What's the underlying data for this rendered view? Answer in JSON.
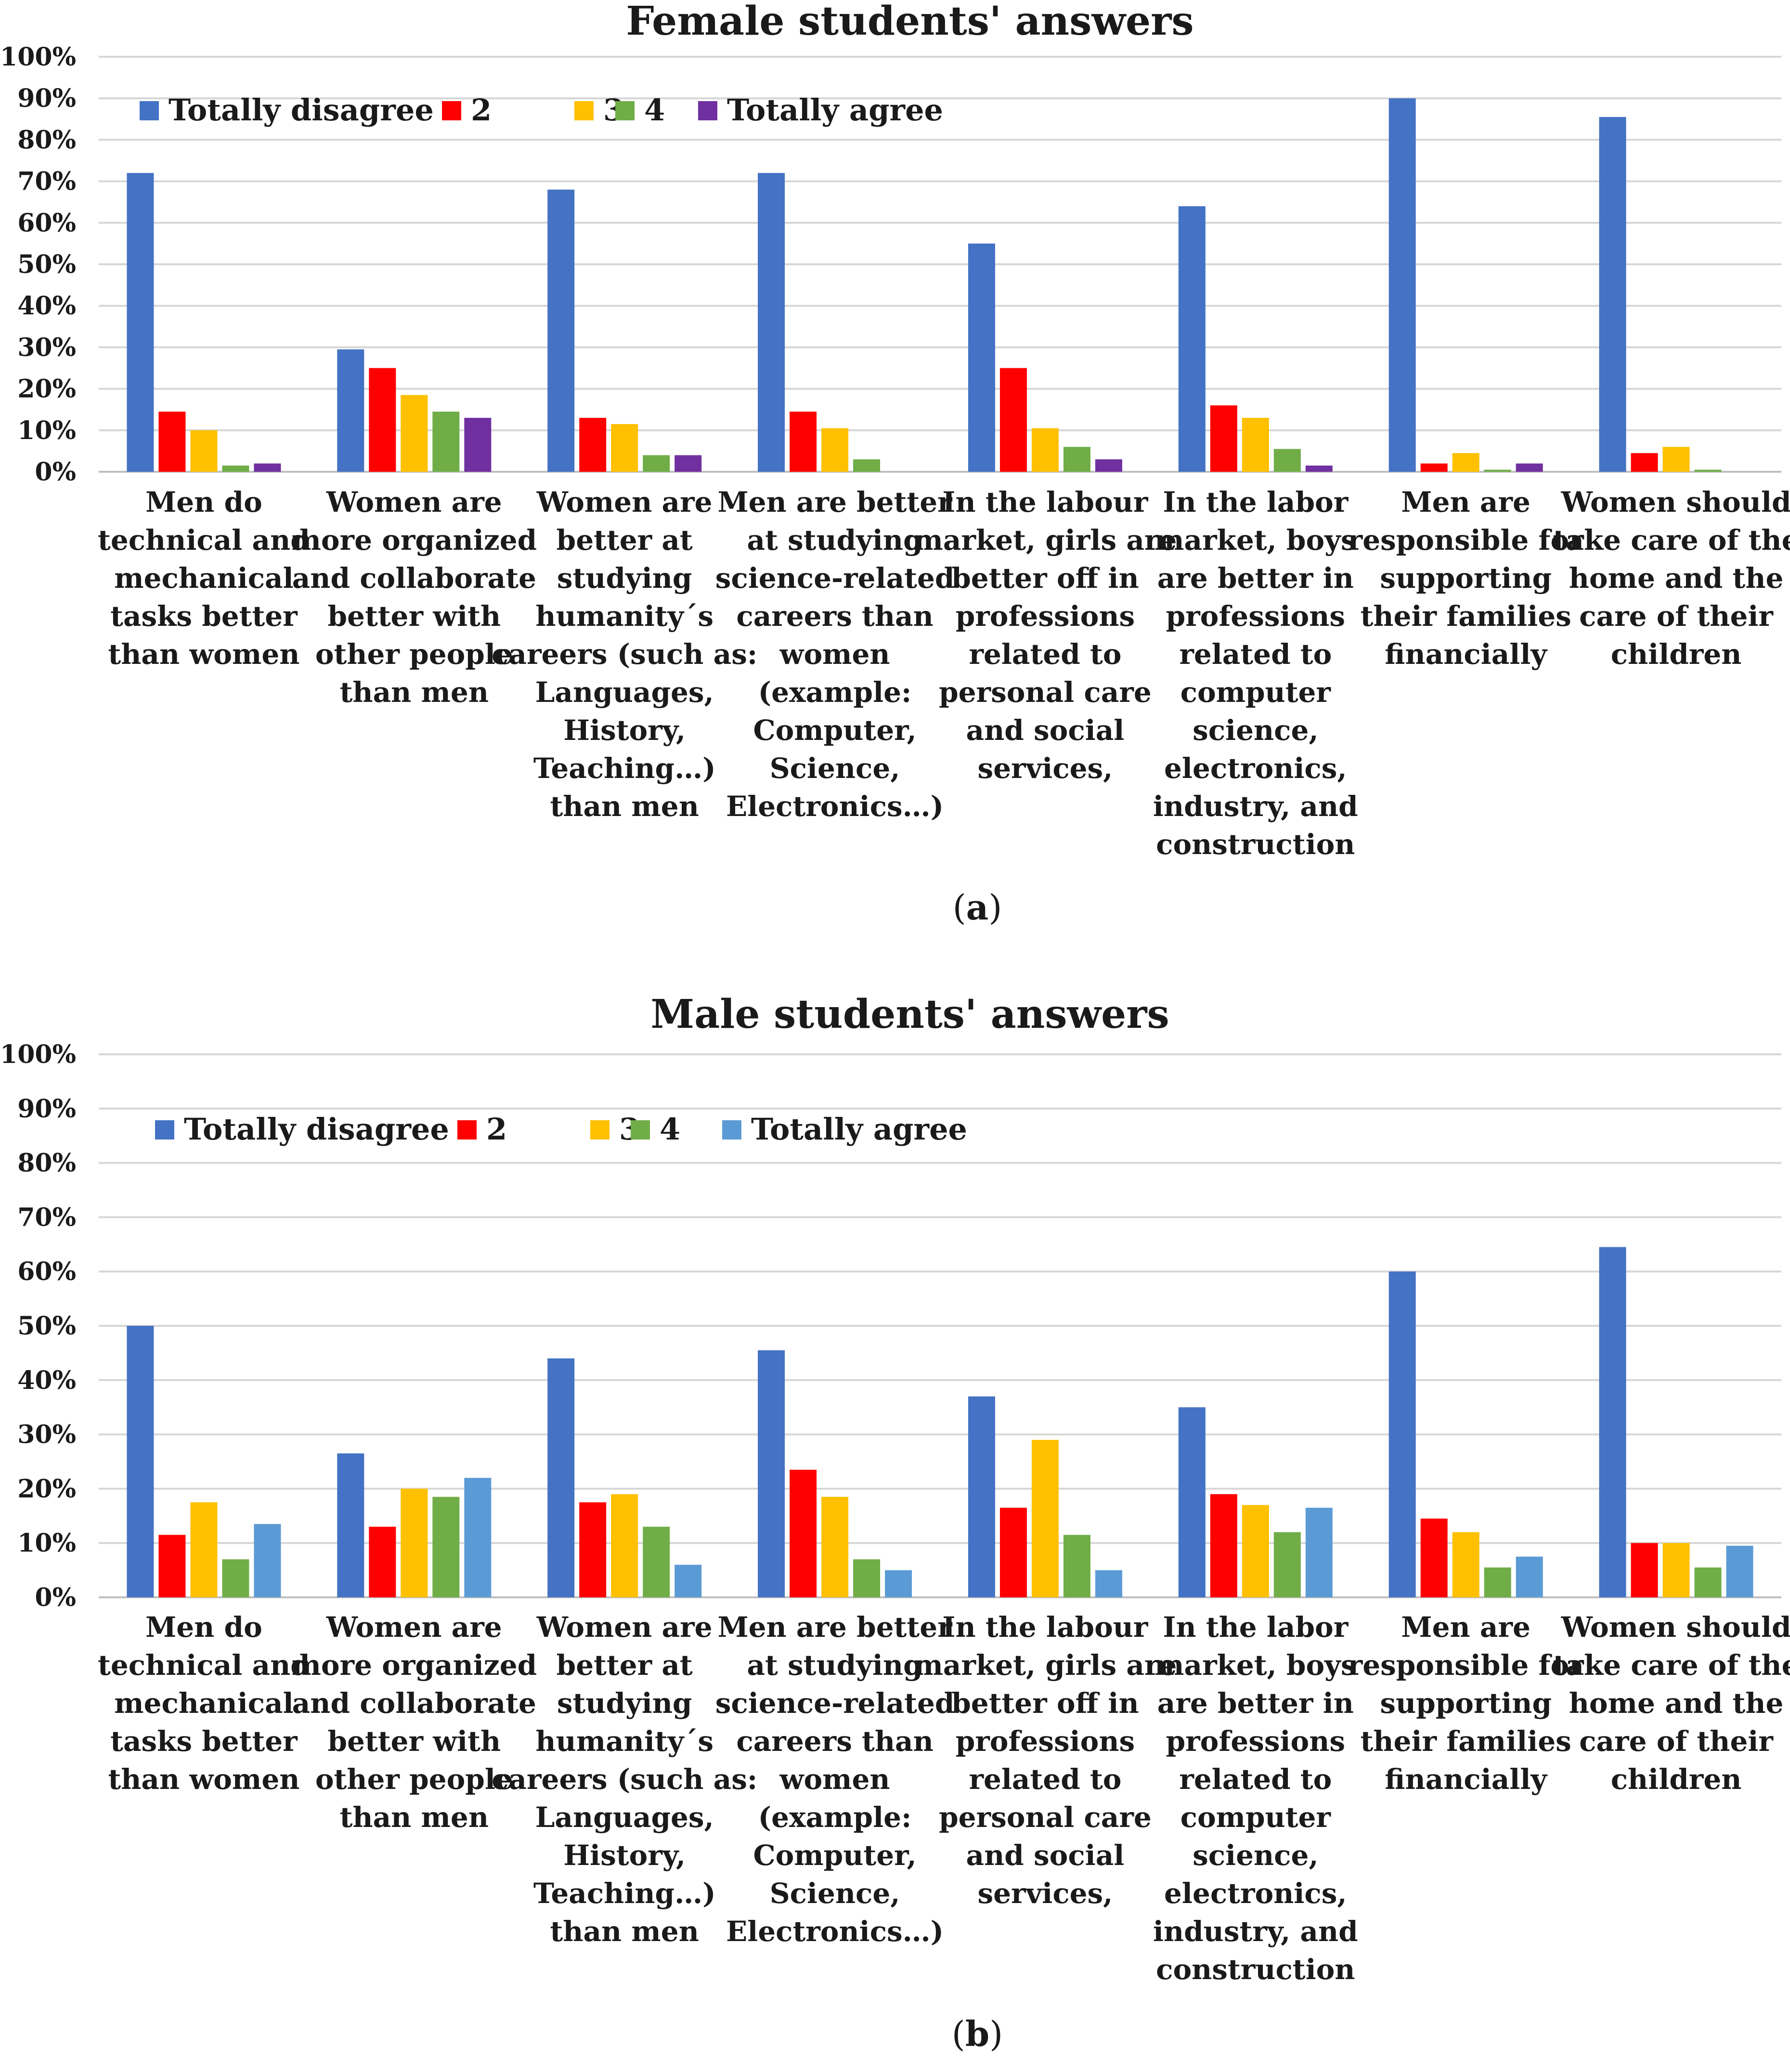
{
  "chart_data": [
    {
      "type": "bar",
      "panel_label": "a",
      "title": "Female students' answers",
      "ylim": [
        0,
        100
      ],
      "yticks": [
        "0%",
        "10%",
        "20%",
        "30%",
        "40%",
        "50%",
        "60%",
        "70%",
        "80%",
        "90%",
        "100%"
      ],
      "legend_position": "top-left",
      "categories": [
        [
          "Men do",
          "technical and",
          "mechanical",
          "tasks better",
          "than women"
        ],
        [
          "Women are",
          "more organized",
          "and collaborate",
          "better with",
          "other people",
          "than men"
        ],
        [
          "Women are",
          "better at",
          "studying",
          "humanity´s",
          "careers (such as:",
          "Languages,",
          "History,",
          "Teaching…)",
          "than men"
        ],
        [
          "Men are better",
          "at studying",
          "science-related",
          "careers than",
          "women",
          "(example:",
          "Computer,",
          "Science,",
          "Electronics…)"
        ],
        [
          "In the labour",
          "market, girls are",
          "better off in",
          "professions",
          "related to",
          "personal care",
          "and social",
          "services,"
        ],
        [
          "In the labor",
          "market, boys",
          "are better in",
          "professions",
          "related to",
          "computer",
          "science,",
          "electronics,",
          "industry, and",
          "construction"
        ],
        [
          "Men are",
          "responsible for",
          "supporting",
          "their families",
          "financially"
        ],
        [
          "Women should",
          "take care of the",
          "home and the",
          "care of their",
          "children"
        ]
      ],
      "series": [
        {
          "name": "Totally disagree",
          "color": "#4472C4",
          "values": [
            72,
            29.5,
            68,
            72,
            55,
            64,
            90,
            85.5
          ]
        },
        {
          "name": "2",
          "color": "#FF0000",
          "values": [
            14.5,
            25,
            13,
            14.5,
            25,
            16,
            2,
            4.5
          ]
        },
        {
          "name": "3",
          "color": "#FFC000",
          "values": [
            10,
            18.5,
            11.5,
            10.5,
            10.5,
            13,
            4.5,
            6
          ]
        },
        {
          "name": "4",
          "color": "#70AD47",
          "values": [
            1.5,
            14.5,
            4,
            3,
            6,
            5.5,
            0.5,
            0.5
          ]
        },
        {
          "name": "Totally agree",
          "color": "#7030A0",
          "values": [
            2,
            13,
            4,
            0,
            3,
            1.5,
            2,
            0
          ]
        }
      ]
    },
    {
      "type": "bar",
      "panel_label": "b",
      "title": "Male students' answers",
      "ylim": [
        0,
        100
      ],
      "yticks": [
        "0%",
        "10%",
        "20%",
        "30%",
        "40%",
        "50%",
        "60%",
        "70%",
        "80%",
        "90%",
        "100%"
      ],
      "legend_position": "top-left",
      "categories": [
        [
          "Men do",
          "technical and",
          "mechanical",
          "tasks better",
          "than women"
        ],
        [
          "Women are",
          "more organized",
          "and collaborate",
          "better with",
          "other people",
          "than men"
        ],
        [
          "Women are",
          "better at",
          "studying",
          "humanity´s",
          "careers (such as:",
          "Languages,",
          "History,",
          "Teaching…)",
          "than men"
        ],
        [
          "Men are better",
          "at studying",
          "science-related",
          "careers than",
          "women",
          "(example:",
          "Computer,",
          "Science,",
          "Electronics…)"
        ],
        [
          "In the labour",
          "market, girls are",
          "better off in",
          "professions",
          "related to",
          "personal care",
          "and social",
          "services,"
        ],
        [
          "In the labor",
          "market, boys",
          "are better in",
          "professions",
          "related to",
          "computer",
          "science,",
          "electronics,",
          "industry, and",
          "construction"
        ],
        [
          "Men are",
          "responsible for",
          "supporting",
          "their families",
          "financially"
        ],
        [
          "Women should",
          "take care of the",
          "home and the",
          "care of their",
          "children"
        ]
      ],
      "series": [
        {
          "name": "Totally disagree",
          "color": "#4472C4",
          "values": [
            50,
            26.5,
            44,
            45.5,
            37,
            35,
            60,
            64.5
          ]
        },
        {
          "name": "2",
          "color": "#FF0000",
          "values": [
            11.5,
            13,
            17.5,
            23.5,
            16.5,
            19,
            14.5,
            10
          ]
        },
        {
          "name": "3",
          "color": "#FFC000",
          "values": [
            17.5,
            20,
            19,
            18.5,
            29,
            17,
            12,
            10
          ]
        },
        {
          "name": "4",
          "color": "#70AD47",
          "values": [
            7,
            18.5,
            13,
            7,
            11.5,
            12,
            5.5,
            5.5
          ]
        },
        {
          "name": "Totally agree",
          "color": "#5B9BD5",
          "values": [
            13.5,
            22,
            6,
            5,
            5,
            16.5,
            7.5,
            9.5
          ]
        }
      ]
    }
  ]
}
